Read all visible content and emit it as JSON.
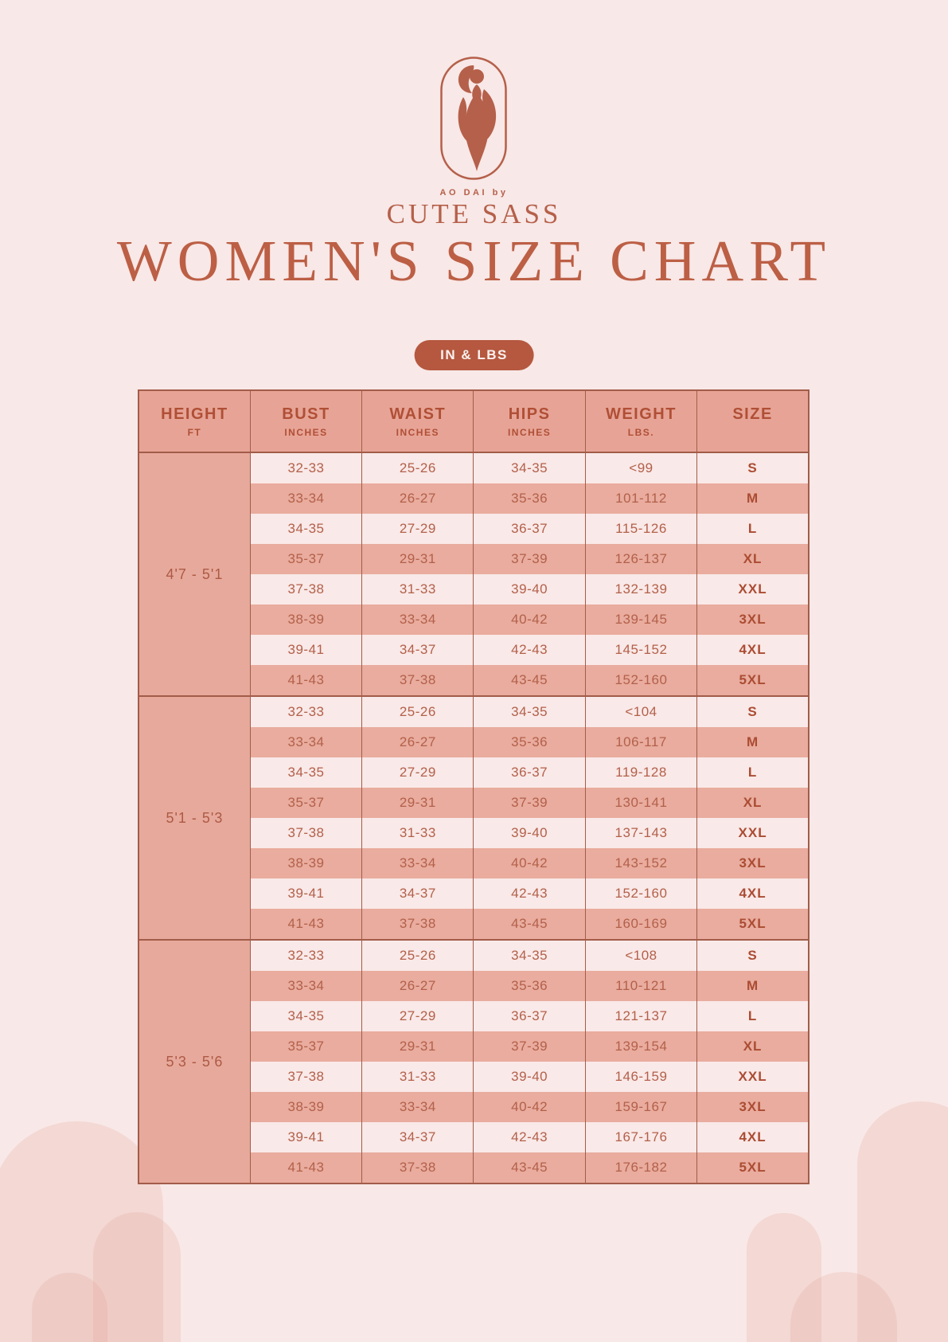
{
  "brand": {
    "logo_icon": "woman-in-ao-dai",
    "tagline": "AO DAI by",
    "name": "CUTE SASS"
  },
  "title": "WOMEN'S SIZE CHART",
  "units_badge": "IN & LBS",
  "table": {
    "columns": [
      {
        "label": "HEIGHT",
        "sub": "FT"
      },
      {
        "label": "BUST",
        "sub": "INCHES"
      },
      {
        "label": "WAIST",
        "sub": "INCHES"
      },
      {
        "label": "HIPS",
        "sub": "INCHES"
      },
      {
        "label": "WEIGHT",
        "sub": "LBS."
      },
      {
        "label": "SIZE",
        "sub": ""
      }
    ],
    "sections": [
      {
        "height_range": "4'7 - 5'1",
        "rows": [
          [
            "32-33",
            "25-26",
            "34-35",
            "<99",
            "S"
          ],
          [
            "33-34",
            "26-27",
            "35-36",
            "101-112",
            "M"
          ],
          [
            "34-35",
            "27-29",
            "36-37",
            "115-126",
            "L"
          ],
          [
            "35-37",
            "29-31",
            "37-39",
            "126-137",
            "XL"
          ],
          [
            "37-38",
            "31-33",
            "39-40",
            "132-139",
            "XXL"
          ],
          [
            "38-39",
            "33-34",
            "40-42",
            "139-145",
            "3XL"
          ],
          [
            "39-41",
            "34-37",
            "42-43",
            "145-152",
            "4XL"
          ],
          [
            "41-43",
            "37-38",
            "43-45",
            "152-160",
            "5XL"
          ]
        ]
      },
      {
        "height_range": "5'1 - 5'3",
        "rows": [
          [
            "32-33",
            "25-26",
            "34-35",
            "<104",
            "S"
          ],
          [
            "33-34",
            "26-27",
            "35-36",
            "106-117",
            "M"
          ],
          [
            "34-35",
            "27-29",
            "36-37",
            "119-128",
            "L"
          ],
          [
            "35-37",
            "29-31",
            "37-39",
            "130-141",
            "XL"
          ],
          [
            "37-38",
            "31-33",
            "39-40",
            "137-143",
            "XXL"
          ],
          [
            "38-39",
            "33-34",
            "40-42",
            "143-152",
            "3XL"
          ],
          [
            "39-41",
            "34-37",
            "42-43",
            "152-160",
            "4XL"
          ],
          [
            "41-43",
            "37-38",
            "43-45",
            "160-169",
            "5XL"
          ]
        ]
      },
      {
        "height_range": "5'3 - 5'6",
        "rows": [
          [
            "32-33",
            "25-26",
            "34-35",
            "<108",
            "S"
          ],
          [
            "33-34",
            "26-27",
            "35-36",
            "110-121",
            "M"
          ],
          [
            "34-35",
            "27-29",
            "36-37",
            "121-137",
            "L"
          ],
          [
            "35-37",
            "29-31",
            "37-39",
            "139-154",
            "XL"
          ],
          [
            "37-38",
            "31-33",
            "39-40",
            "146-159",
            "XXL"
          ],
          [
            "38-39",
            "33-34",
            "40-42",
            "159-167",
            "3XL"
          ],
          [
            "39-41",
            "34-37",
            "42-43",
            "167-176",
            "4XL"
          ],
          [
            "41-43",
            "37-38",
            "43-45",
            "176-182",
            "5XL"
          ]
        ]
      }
    ]
  },
  "colors": {
    "background": "#f8e8e7",
    "accent_terracotta": "#b95c43",
    "badge_fill": "#b5583f",
    "table_header_fill": "#e7a496",
    "table_salmon_stripe": "#e9ac9e",
    "table_light_stripe": "#f9e9e8",
    "table_border": "#a25c49"
  }
}
